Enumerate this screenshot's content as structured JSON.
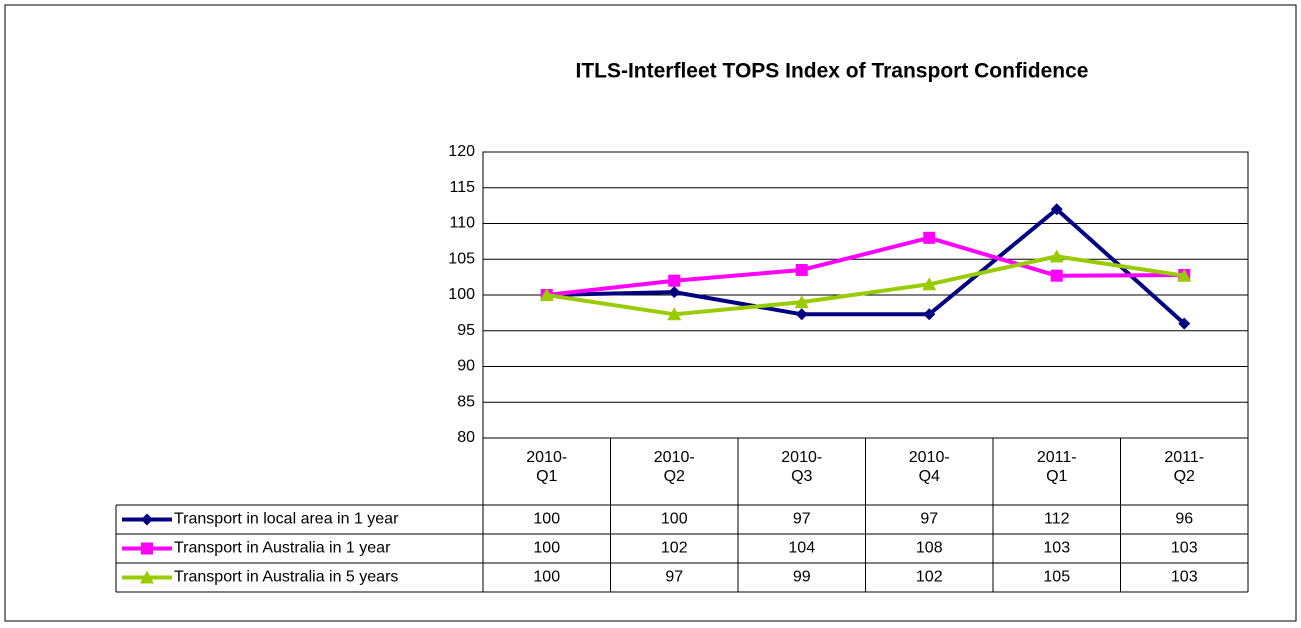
{
  "chart_data": {
    "type": "line",
    "title": "ITLS-Interfleet TOPS Index of Transport Confidence",
    "categories": [
      "2010-Q1",
      "2010-Q2",
      "2010-Q3",
      "2010-Q4",
      "2011-Q1",
      "2011-Q2"
    ],
    "series": [
      {
        "name": "Transport in local area in 1 year",
        "color": "#000080",
        "marker": "diamond",
        "values": [
          100,
          100.4,
          97.3,
          97.3,
          112,
          96
        ],
        "value_labels": [
          "100",
          "100",
          "97",
          "97",
          "112",
          "96"
        ]
      },
      {
        "name": "Transport in Australia in 1 year",
        "color": "#ff00ff",
        "marker": "square",
        "values": [
          100,
          102,
          103.5,
          108,
          102.7,
          102.8
        ],
        "value_labels": [
          "100",
          "102",
          "104",
          "108",
          "103",
          "103"
        ]
      },
      {
        "name": "Transport in Australia in 5 years",
        "color": "#99cc00",
        "marker": "triangle",
        "values": [
          100,
          97.3,
          99,
          101.5,
          105.4,
          102.7
        ],
        "value_labels": [
          "100",
          "97",
          "99",
          "102",
          "105",
          "103"
        ]
      }
    ],
    "ylim": [
      80,
      120
    ],
    "yticks": [
      80,
      85,
      90,
      95,
      100,
      105,
      110,
      115,
      120
    ],
    "grid": true
  }
}
